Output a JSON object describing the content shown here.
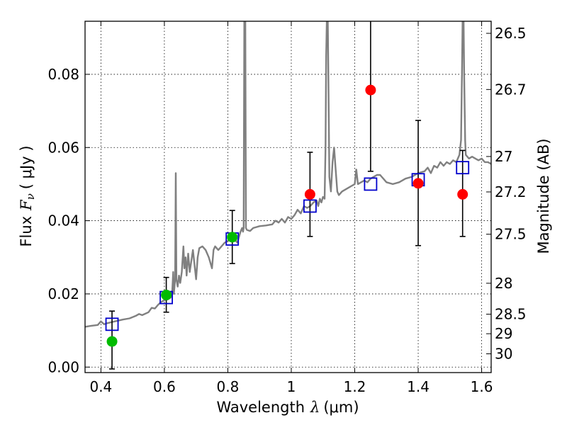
{
  "chart_data": {
    "type": "scatter",
    "xlabel_text": "Wavelength",
    "xlabel_symbol": "λ",
    "xlabel_unit": "(μm)",
    "ylabel_text": "Flux",
    "ylabel_symbol": "F",
    "ylabel_sub": "ν",
    "ylabel_unit": "( μJy )",
    "y2label": "Magnitude (AB)",
    "xlim": [
      0.35,
      1.63
    ],
    "ylim": [
      -0.0015,
      0.0945
    ],
    "grid": true,
    "x_ticks": [
      0.4,
      0.6,
      0.8,
      1.0,
      1.2,
      1.4,
      1.6
    ],
    "x_tick_labels": [
      "0.4",
      "0.6",
      "0.8",
      "1",
      "1.2",
      "1.4",
      "1.6"
    ],
    "y_ticks": [
      0.0,
      0.02,
      0.04,
      0.06,
      0.08
    ],
    "y_tick_labels": [
      "0.00",
      "0.02",
      "0.04",
      "0.06",
      "0.08"
    ],
    "mag_ticks": [
      {
        "mag": 26.5,
        "label": "26.5"
      },
      {
        "mag": 26.7,
        "label": "26.7"
      },
      {
        "mag": 27.0,
        "label": "27"
      },
      {
        "mag": 27.2,
        "label": "27.2"
      },
      {
        "mag": 27.5,
        "label": "27.5"
      },
      {
        "mag": 28.0,
        "label": "28"
      },
      {
        "mag": 28.5,
        "label": "28.5"
      },
      {
        "mag": 29.0,
        "label": "29"
      },
      {
        "mag": 30.0,
        "label": "30"
      }
    ],
    "observed_points": [
      {
        "x": 0.435,
        "y": 0.007,
        "err_low": 0.0075,
        "err_high": 0.0083,
        "color": "#00bb00"
      },
      {
        "x": 0.606,
        "y": 0.0197,
        "err_low": 0.0047,
        "err_high": 0.0048,
        "color": "#00bb00"
      },
      {
        "x": 0.814,
        "y": 0.0355,
        "err_low": 0.0072,
        "err_high": 0.0073,
        "color": "#00bb00"
      },
      {
        "x": 1.059,
        "y": 0.0472,
        "err_low": 0.0115,
        "err_high": 0.0115,
        "color": "#ff0000"
      },
      {
        "x": 1.25,
        "y": 0.0757,
        "err_low": 0.0222,
        "err_high": 0.025,
        "color": "#ff0000"
      },
      {
        "x": 1.4,
        "y": 0.0502,
        "err_low": 0.017,
        "err_high": 0.0172,
        "color": "#ff0000"
      },
      {
        "x": 1.54,
        "y": 0.0472,
        "err_low": 0.0115,
        "err_high": 0.012,
        "color": "#ff0000"
      }
    ],
    "model_points": [
      {
        "x": 0.435,
        "y": 0.0117
      },
      {
        "x": 0.606,
        "y": 0.019
      },
      {
        "x": 0.814,
        "y": 0.035
      },
      {
        "x": 1.059,
        "y": 0.044
      },
      {
        "x": 1.25,
        "y": 0.05
      },
      {
        "x": 1.4,
        "y": 0.0512
      },
      {
        "x": 1.54,
        "y": 0.0545
      }
    ],
    "spectrum": {
      "color": "#808080",
      "points": [
        [
          0.35,
          0.011
        ],
        [
          0.37,
          0.0113
        ],
        [
          0.39,
          0.0115
        ],
        [
          0.4,
          0.0125
        ],
        [
          0.41,
          0.0117
        ],
        [
          0.42,
          0.012
        ],
        [
          0.43,
          0.0122
        ],
        [
          0.45,
          0.0126
        ],
        [
          0.47,
          0.013
        ],
        [
          0.49,
          0.0133
        ],
        [
          0.51,
          0.014
        ],
        [
          0.52,
          0.0145
        ],
        [
          0.53,
          0.0142
        ],
        [
          0.55,
          0.015
        ],
        [
          0.56,
          0.0162
        ],
        [
          0.57,
          0.016
        ],
        [
          0.58,
          0.017
        ],
        [
          0.59,
          0.0178
        ],
        [
          0.6,
          0.0183
        ],
        [
          0.61,
          0.0185
        ],
        [
          0.62,
          0.019
        ],
        [
          0.625,
          0.021
        ],
        [
          0.628,
          0.026
        ],
        [
          0.63,
          0.02
        ],
        [
          0.634,
          0.024
        ],
        [
          0.636,
          0.053
        ],
        [
          0.638,
          0.024
        ],
        [
          0.642,
          0.022
        ],
        [
          0.646,
          0.025
        ],
        [
          0.65,
          0.023
        ],
        [
          0.655,
          0.026
        ],
        [
          0.66,
          0.033
        ],
        [
          0.663,
          0.027
        ],
        [
          0.667,
          0.03
        ],
        [
          0.67,
          0.025
        ],
        [
          0.675,
          0.031
        ],
        [
          0.68,
          0.026
        ],
        [
          0.69,
          0.032
        ],
        [
          0.7,
          0.024
        ],
        [
          0.705,
          0.03
        ],
        [
          0.71,
          0.0325
        ],
        [
          0.72,
          0.033
        ],
        [
          0.73,
          0.032
        ],
        [
          0.74,
          0.03
        ],
        [
          0.75,
          0.027
        ],
        [
          0.755,
          0.032
        ],
        [
          0.76,
          0.033
        ],
        [
          0.77,
          0.032
        ],
        [
          0.78,
          0.033
        ],
        [
          0.79,
          0.034
        ],
        [
          0.8,
          0.0345
        ],
        [
          0.81,
          0.0348
        ],
        [
          0.82,
          0.035
        ],
        [
          0.83,
          0.034
        ],
        [
          0.835,
          0.0355
        ],
        [
          0.84,
          0.037
        ],
        [
          0.845,
          0.038
        ],
        [
          0.848,
          0.037
        ],
        [
          0.85,
          0.038
        ],
        [
          0.852,
          0.0945
        ],
        [
          0.855,
          0.0945
        ],
        [
          0.857,
          0.038
        ],
        [
          0.86,
          0.0375
        ],
        [
          0.87,
          0.0372
        ],
        [
          0.88,
          0.038
        ],
        [
          0.9,
          0.0385
        ],
        [
          0.92,
          0.0387
        ],
        [
          0.94,
          0.039
        ],
        [
          0.95,
          0.04
        ],
        [
          0.96,
          0.0395
        ],
        [
          0.97,
          0.0405
        ],
        [
          0.98,
          0.0395
        ],
        [
          0.99,
          0.041
        ],
        [
          1.0,
          0.0405
        ],
        [
          1.01,
          0.0415
        ],
        [
          1.02,
          0.043
        ],
        [
          1.03,
          0.042
        ],
        [
          1.04,
          0.044
        ],
        [
          1.05,
          0.0435
        ],
        [
          1.06,
          0.044
        ],
        [
          1.07,
          0.045
        ],
        [
          1.08,
          0.0455
        ],
        [
          1.085,
          0.044
        ],
        [
          1.09,
          0.046
        ],
        [
          1.095,
          0.045
        ],
        [
          1.1,
          0.0465
        ],
        [
          1.105,
          0.046
        ],
        [
          1.108,
          0.06
        ],
        [
          1.11,
          0.085
        ],
        [
          1.112,
          0.0945
        ],
        [
          1.115,
          0.0945
        ],
        [
          1.118,
          0.07
        ],
        [
          1.12,
          0.052
        ],
        [
          1.125,
          0.048
        ],
        [
          1.13,
          0.056
        ],
        [
          1.135,
          0.06
        ],
        [
          1.14,
          0.054
        ],
        [
          1.145,
          0.048
        ],
        [
          1.15,
          0.047
        ],
        [
          1.16,
          0.048
        ],
        [
          1.17,
          0.0485
        ],
        [
          1.18,
          0.049
        ],
        [
          1.19,
          0.0495
        ],
        [
          1.2,
          0.05
        ],
        [
          1.205,
          0.054
        ],
        [
          1.21,
          0.05
        ],
        [
          1.22,
          0.0505
        ],
        [
          1.23,
          0.051
        ],
        [
          1.24,
          0.0505
        ],
        [
          1.25,
          0.0515
        ],
        [
          1.26,
          0.052
        ],
        [
          1.27,
          0.0525
        ],
        [
          1.28,
          0.0525
        ],
        [
          1.3,
          0.0505
        ],
        [
          1.32,
          0.05
        ],
        [
          1.34,
          0.0505
        ],
        [
          1.36,
          0.0515
        ],
        [
          1.38,
          0.052
        ],
        [
          1.39,
          0.0525
        ],
        [
          1.4,
          0.053
        ],
        [
          1.42,
          0.0535
        ],
        [
          1.43,
          0.0545
        ],
        [
          1.44,
          0.053
        ],
        [
          1.45,
          0.055
        ],
        [
          1.46,
          0.0545
        ],
        [
          1.47,
          0.056
        ],
        [
          1.48,
          0.055
        ],
        [
          1.49,
          0.056
        ],
        [
          1.5,
          0.0555
        ],
        [
          1.51,
          0.0565
        ],
        [
          1.52,
          0.056
        ],
        [
          1.53,
          0.058
        ],
        [
          1.535,
          0.062
        ],
        [
          1.538,
          0.08
        ],
        [
          1.54,
          0.0945
        ],
        [
          1.543,
          0.0945
        ],
        [
          1.545,
          0.08
        ],
        [
          1.548,
          0.062
        ],
        [
          1.55,
          0.058
        ],
        [
          1.56,
          0.057
        ],
        [
          1.57,
          0.0575
        ],
        [
          1.58,
          0.057
        ],
        [
          1.59,
          0.0565
        ],
        [
          1.6,
          0.057
        ],
        [
          1.61,
          0.056
        ],
        [
          1.62,
          0.056
        ],
        [
          1.63,
          0.0555
        ]
      ]
    }
  }
}
